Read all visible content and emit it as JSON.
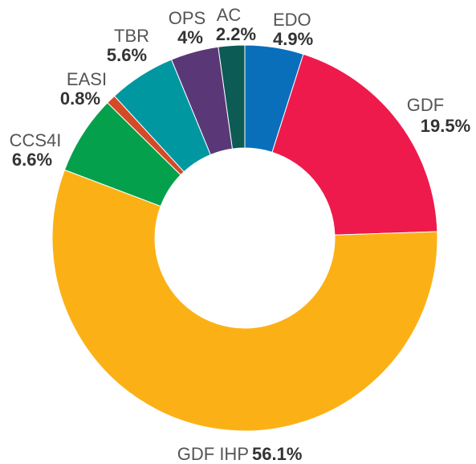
{
  "chart_data": {
    "type": "donut",
    "categories": [
      "EDO",
      "GDF",
      "GDF IHP",
      "CCS4I",
      "EASI",
      "TBR",
      "OPS",
      "AC"
    ],
    "values": [
      4.9,
      19.5,
      56.1,
      6.6,
      0.8,
      5.6,
      4,
      2.2
    ],
    "value_labels": [
      "4.9%",
      "19.5%",
      "56.1%",
      "6.6%",
      "0.8%",
      "5.6%",
      "4%",
      "2.2%"
    ],
    "colors": [
      "#0a6fba",
      "#ee1a4c",
      "#fbb116",
      "#05a04b",
      "#d34a26",
      "#0097a0",
      "#5a3878",
      "#0c5b55"
    ]
  }
}
